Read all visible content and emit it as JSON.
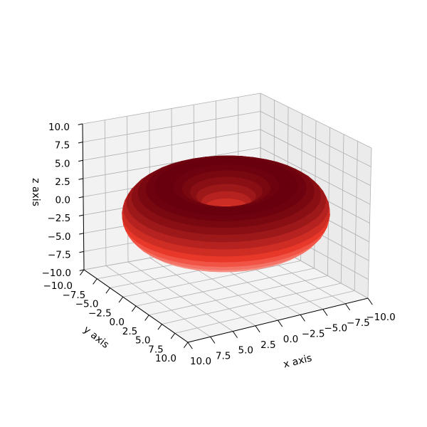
{
  "chart_data": {
    "type": "surface",
    "surface": {
      "shape": "torus",
      "major_radius": 6,
      "minor_radius": 4,
      "center": [
        0,
        0,
        0
      ],
      "colormap": "Reds"
    },
    "xlabel": "x axis",
    "ylabel": "y axis",
    "zlabel": "z axis",
    "xlim": [
      -10,
      10
    ],
    "ylim": [
      -10,
      10
    ],
    "zlim": [
      -10,
      10
    ],
    "x_ticks": [
      "10.0",
      "7.5",
      "5.0",
      "2.5",
      "0.0",
      "−2.5",
      "−5.0",
      "−7.5",
      "−10.0"
    ],
    "y_ticks": [
      "−10.0",
      "−7.5",
      "−5.0",
      "−2.5",
      "0.0",
      "2.5",
      "5.0",
      "7.5",
      "10.0"
    ],
    "z_ticks": [
      "10.0",
      "7.5",
      "5.0",
      "2.5",
      "0.0",
      "−2.5",
      "−5.0",
      "−7.5",
      "−10.0"
    ],
    "grid": true,
    "colors": {
      "pane": "#f2f2f2",
      "pane_side": "#ebebeb",
      "floor": "#f4f4f4",
      "surface_dark": "#67000d",
      "surface_mid": "#ef3b2c",
      "surface_light": "#fff5f0"
    }
  }
}
